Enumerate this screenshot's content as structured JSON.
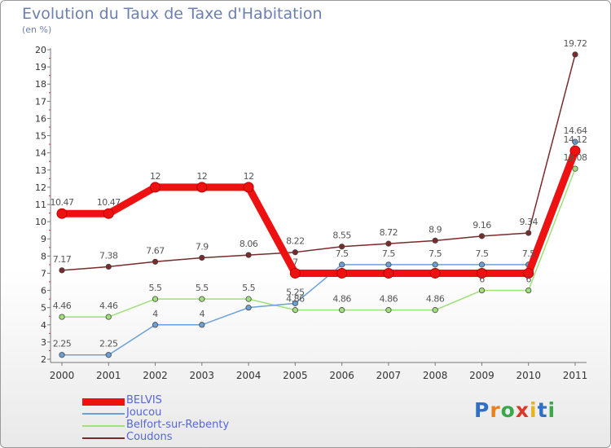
{
  "header": {
    "title": "Evolution du Taux de Taxe d'Habitation",
    "subtitle": "(en %)"
  },
  "brand": {
    "letters": [
      "P",
      "r",
      "o",
      "x",
      "i",
      "t",
      "i"
    ],
    "colors": [
      "#2f6fc4",
      "#e8801e",
      "#3aa84a",
      "#d93a2a",
      "#e8b41e",
      "#2f6fc4",
      "#3aa84a"
    ]
  },
  "chart_data": {
    "type": "line",
    "x": [
      "2000",
      "2001",
      "2002",
      "2003",
      "2004",
      "2005",
      "2006",
      "2007",
      "2008",
      "2009",
      "2010",
      "2011"
    ],
    "ylim": [
      2,
      20
    ],
    "yticks": [
      "2",
      "3",
      "4",
      "5",
      "6",
      "7",
      "8",
      "9",
      "10",
      "11",
      "12",
      "13",
      "14",
      "15",
      "16",
      "17",
      "18",
      "19",
      "20"
    ],
    "grid": false,
    "legend_position": "bottom-left",
    "series": [
      {
        "name": "BELVIS",
        "color": "#ee1111",
        "values": [
          10.47,
          10.47,
          12,
          12,
          12,
          7,
          7,
          7,
          7,
          7,
          7,
          14.12
        ],
        "labels": [
          "10.47",
          "10.47",
          "12",
          "12",
          "12",
          "7",
          "",
          "",
          "",
          "",
          "",
          "14.12"
        ]
      },
      {
        "name": "Joucou",
        "color": "#6aa0d6",
        "values": [
          2.25,
          2.25,
          4,
          4,
          5,
          5.25,
          7.5,
          7.5,
          7.5,
          7.5,
          7.5,
          14.64
        ],
        "labels": [
          "2.25",
          "2.25",
          "4",
          "4",
          "",
          "5.25",
          "7.5",
          "7.5",
          "7.5",
          "7.5",
          "7.5",
          "14.64"
        ]
      },
      {
        "name": "Belfort-sur-Rebenty",
        "color": "#9fe07a",
        "values": [
          4.46,
          4.46,
          5.5,
          5.5,
          5.5,
          4.86,
          4.86,
          4.86,
          4.86,
          6,
          6,
          13.08
        ],
        "labels": [
          "4.46",
          "4.46",
          "5.5",
          "5.5",
          "5.5",
          "4.86",
          "4.86",
          "4.86",
          "4.86",
          "6",
          "6",
          "13.08"
        ]
      },
      {
        "name": "Coudons",
        "color": "#7a2a2a",
        "values": [
          7.17,
          7.38,
          7.67,
          7.9,
          8.06,
          8.22,
          8.55,
          8.72,
          8.9,
          9.16,
          9.34,
          19.72
        ],
        "labels": [
          "7.17",
          "7.38",
          "7.67",
          "7.9",
          "8.06",
          "8.22",
          "8.55",
          "8.72",
          "8.9",
          "9.16",
          "9.34",
          "19.72"
        ]
      }
    ]
  }
}
